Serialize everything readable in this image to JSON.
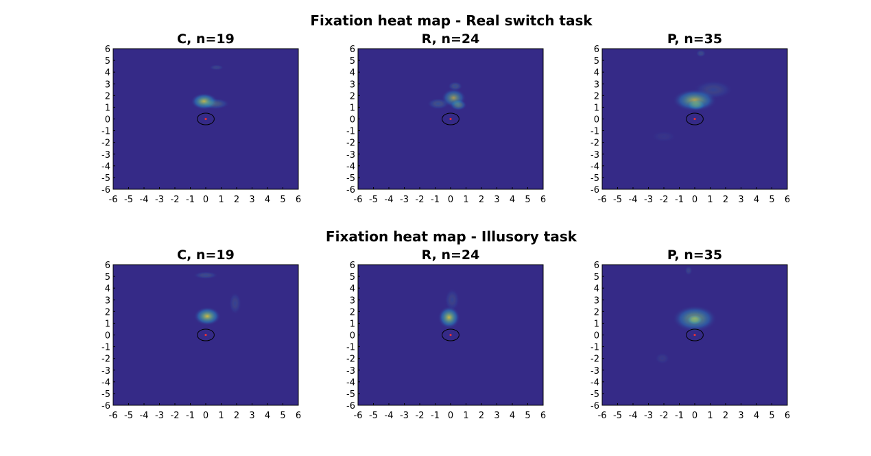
{
  "figure": {
    "colors": {
      "background": "#352a87",
      "mid": "#23a2d2",
      "high": "#6cc08b",
      "peak": "#e7d239",
      "marker": "#e0303c",
      "ellipse": "#000000"
    }
  },
  "chart_data": [
    {
      "type": "heatmap",
      "group_title": "Fixation heat map - Real switch task",
      "title": "C, n=19",
      "xlim": [
        -6,
        6
      ],
      "ylim": [
        -6,
        6
      ],
      "xticks": [
        "-6",
        "-5",
        "-4",
        "-3",
        "-2",
        "-1",
        "0",
        "1",
        "2",
        "3",
        "4",
        "5",
        "6"
      ],
      "yticks": [
        "6",
        "5",
        "4",
        "3",
        "2",
        "1",
        "0",
        "-1",
        "-2",
        "-3",
        "-4",
        "-5",
        "-6"
      ],
      "grid": false,
      "ellipse": {
        "cx": 0,
        "cy": 0,
        "rx": 0.55,
        "ry": 0.5
      },
      "marker": {
        "x": 0,
        "y": 0
      },
      "blobs": [
        {
          "x": -0.1,
          "y": 1.5,
          "sx": 0.55,
          "sy": 0.45,
          "i": 0.85
        },
        {
          "x": 0.6,
          "y": 1.3,
          "sx": 0.6,
          "sy": 0.3,
          "i": 0.35
        },
        {
          "x": 0.7,
          "y": 4.4,
          "sx": 0.3,
          "sy": 0.15,
          "i": 0.2
        }
      ]
    },
    {
      "type": "heatmap",
      "group_title": "",
      "title": "R, n=24",
      "xlim": [
        -6,
        6
      ],
      "ylim": [
        -6,
        6
      ],
      "xticks": [
        "-6",
        "-5",
        "-4",
        "-3",
        "-2",
        "-1",
        "0",
        "1",
        "2",
        "3",
        "4",
        "5",
        "6"
      ],
      "yticks": [
        "6",
        "5",
        "4",
        "3",
        "2",
        "1",
        "0",
        "-1",
        "-2",
        "-3",
        "-4",
        "-5",
        "-6"
      ],
      "grid": false,
      "ellipse": {
        "cx": 0,
        "cy": 0,
        "rx": 0.55,
        "ry": 0.5
      },
      "marker": {
        "x": 0,
        "y": 0
      },
      "blobs": [
        {
          "x": 0.2,
          "y": 1.8,
          "sx": 0.5,
          "sy": 0.5,
          "i": 0.65
        },
        {
          "x": 0.5,
          "y": 1.2,
          "sx": 0.35,
          "sy": 0.3,
          "i": 0.55
        },
        {
          "x": -0.8,
          "y": 1.3,
          "sx": 0.45,
          "sy": 0.3,
          "i": 0.3
        },
        {
          "x": 0.3,
          "y": 2.8,
          "sx": 0.3,
          "sy": 0.25,
          "i": 0.3
        }
      ]
    },
    {
      "type": "heatmap",
      "group_title": "",
      "title": "P, n=35",
      "xlim": [
        -6,
        6
      ],
      "ylim": [
        -6,
        6
      ],
      "xticks": [
        "-6",
        "-5",
        "-4",
        "-3",
        "-2",
        "-1",
        "0",
        "1",
        "2",
        "3",
        "4",
        "5",
        "6"
      ],
      "yticks": [
        "6",
        "5",
        "4",
        "3",
        "2",
        "1",
        "0",
        "-1",
        "-2",
        "-3",
        "-4",
        "-5",
        "-6"
      ],
      "grid": false,
      "ellipse": {
        "cx": 0,
        "cy": 0,
        "rx": 0.55,
        "ry": 0.5
      },
      "marker": {
        "x": 0,
        "y": 0
      },
      "blobs": [
        {
          "x": 0.0,
          "y": 1.6,
          "sx": 0.9,
          "sy": 0.6,
          "i": 0.75
        },
        {
          "x": 0.1,
          "y": 1.2,
          "sx": 0.4,
          "sy": 0.3,
          "i": 0.5
        },
        {
          "x": 0.4,
          "y": 5.6,
          "sx": 0.2,
          "sy": 0.2,
          "i": 0.25
        },
        {
          "x": 1.2,
          "y": 2.5,
          "sx": 0.8,
          "sy": 0.5,
          "i": 0.2
        },
        {
          "x": -2.0,
          "y": -1.5,
          "sx": 0.5,
          "sy": 0.3,
          "i": 0.08
        }
      ]
    },
    {
      "type": "heatmap",
      "group_title": "Fixation heat map - Illusory task",
      "title": "C, n=19",
      "xlim": [
        -6,
        6
      ],
      "ylim": [
        -6,
        6
      ],
      "xticks": [
        "-6",
        "-5",
        "-4",
        "-3",
        "-2",
        "-1",
        "0",
        "1",
        "2",
        "3",
        "4",
        "5",
        "6"
      ],
      "yticks": [
        "6",
        "5",
        "4",
        "3",
        "2",
        "1",
        "0",
        "-1",
        "-2",
        "-3",
        "-4",
        "-5",
        "-6"
      ],
      "grid": false,
      "ellipse": {
        "cx": 0,
        "cy": 0,
        "rx": 0.55,
        "ry": 0.5
      },
      "marker": {
        "x": 0,
        "y": 0
      },
      "blobs": [
        {
          "x": 0.1,
          "y": 1.6,
          "sx": 0.55,
          "sy": 0.5,
          "i": 0.85
        },
        {
          "x": 0.0,
          "y": 5.1,
          "sx": 0.5,
          "sy": 0.2,
          "i": 0.25
        },
        {
          "x": 1.9,
          "y": 2.7,
          "sx": 0.25,
          "sy": 0.6,
          "i": 0.2
        }
      ]
    },
    {
      "type": "heatmap",
      "group_title": "",
      "title": "R, n=24",
      "xlim": [
        -6,
        6
      ],
      "ylim": [
        -6,
        6
      ],
      "xticks": [
        "-6",
        "-5",
        "-4",
        "-3",
        "-2",
        "-1",
        "0",
        "1",
        "2",
        "3",
        "4",
        "5",
        "6"
      ],
      "yticks": [
        "6",
        "5",
        "4",
        "3",
        "2",
        "1",
        "0",
        "-1",
        "-2",
        "-3",
        "-4",
        "-5",
        "-6"
      ],
      "grid": false,
      "ellipse": {
        "cx": 0,
        "cy": 0,
        "rx": 0.55,
        "ry": 0.5
      },
      "marker": {
        "x": 0,
        "y": 0
      },
      "blobs": [
        {
          "x": -0.1,
          "y": 1.5,
          "sx": 0.45,
          "sy": 0.6,
          "i": 0.85
        },
        {
          "x": 0.1,
          "y": 3.0,
          "sx": 0.3,
          "sy": 0.6,
          "i": 0.2
        }
      ]
    },
    {
      "type": "heatmap",
      "group_title": "",
      "title": "P, n=35",
      "xlim": [
        -6,
        6
      ],
      "ylim": [
        -6,
        6
      ],
      "xticks": [
        "-6",
        "-5",
        "-4",
        "-3",
        "-2",
        "-1",
        "0",
        "1",
        "2",
        "3",
        "4",
        "5",
        "6"
      ],
      "yticks": [
        "6",
        "5",
        "4",
        "3",
        "2",
        "1",
        "0",
        "-1",
        "-2",
        "-3",
        "-4",
        "-5",
        "-6"
      ],
      "grid": false,
      "ellipse": {
        "cx": 0,
        "cy": 0,
        "rx": 0.55,
        "ry": 0.5
      },
      "marker": {
        "x": 0,
        "y": 0
      },
      "blobs": [
        {
          "x": 0.0,
          "y": 1.4,
          "sx": 0.9,
          "sy": 0.7,
          "i": 0.7
        },
        {
          "x": 0.0,
          "y": 1.3,
          "sx": 0.35,
          "sy": 0.3,
          "i": 0.6
        },
        {
          "x": -0.4,
          "y": 5.5,
          "sx": 0.15,
          "sy": 0.25,
          "i": 0.2
        },
        {
          "x": -2.1,
          "y": -2.0,
          "sx": 0.3,
          "sy": 0.3,
          "i": 0.12
        }
      ]
    }
  ]
}
